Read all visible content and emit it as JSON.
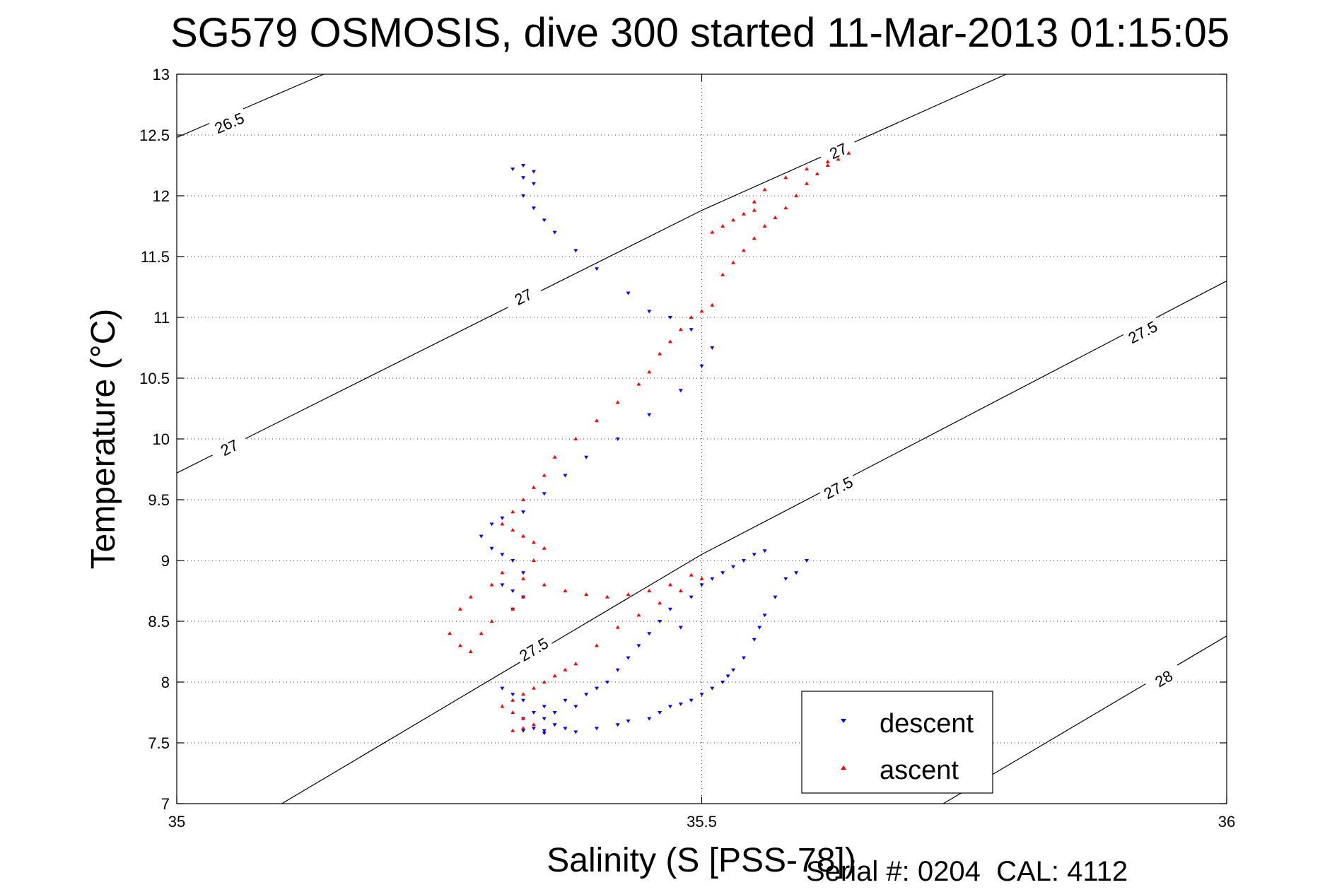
{
  "chart_data": {
    "type": "scatter",
    "title": "SG579 OSMOSIS, dive 300 started 11-Mar-2013 01:15:05",
    "xlabel": "Salinity (S [PSS-78])",
    "ylabel": "Temperature (°C)",
    "xlim": [
      35,
      36
    ],
    "ylim": [
      7,
      13
    ],
    "xticks": [
      35,
      35.5,
      36
    ],
    "xtick_labels": [
      "35",
      "35.5",
      "36"
    ],
    "yticks": [
      7,
      7.5,
      8,
      8.5,
      9,
      9.5,
      10,
      10.5,
      11,
      11.5,
      12,
      12.5,
      13
    ],
    "ytick_labels": [
      "7",
      "7.5",
      "8",
      "8.5",
      "9",
      "9.5",
      "10",
      "10.5",
      "11",
      "11.5",
      "12",
      "12.5",
      "13"
    ],
    "grid": true,
    "legend_position": "bottom-right",
    "footer": "Serial #: 0204  CAL: 4112",
    "contours": [
      {
        "label": "26.5",
        "points": [
          [
            35.0,
            12.48
          ],
          [
            35.14,
            13.0
          ]
        ],
        "label_positions": [
          [
            35.05,
            12.6
          ]
        ]
      },
      {
        "label": "27",
        "points": [
          [
            35.0,
            9.72
          ],
          [
            35.5,
            11.88
          ],
          [
            35.79,
            13.0
          ]
        ],
        "label_positions": [
          [
            35.05,
            9.93
          ],
          [
            35.33,
            11.17
          ],
          [
            35.63,
            12.37
          ]
        ]
      },
      {
        "label": "27.5",
        "points": [
          [
            35.1,
            7.0
          ],
          [
            35.5,
            9.05
          ],
          [
            36.0,
            11.3
          ]
        ],
        "label_positions": [
          [
            35.34,
            8.27
          ],
          [
            35.63,
            9.6
          ],
          [
            35.92,
            10.88
          ]
        ]
      },
      {
        "label": "28",
        "points": [
          [
            35.73,
            7.0
          ],
          [
            36.0,
            8.38
          ]
        ],
        "label_positions": [
          [
            35.94,
            8.03
          ]
        ]
      }
    ],
    "series": [
      {
        "name": "descent",
        "color": "#0000ff",
        "marker": "triangle-down",
        "x": [
          35.33,
          35.35,
          35.38,
          35.4,
          35.42,
          35.43,
          35.45,
          35.46,
          35.47,
          35.48,
          35.49,
          35.5,
          35.51,
          35.52,
          35.525,
          35.53,
          35.54,
          35.55,
          35.555,
          35.56,
          35.57,
          35.58,
          35.59,
          35.6,
          35.56,
          35.55,
          35.54,
          35.53,
          35.52,
          35.51,
          35.5,
          35.49,
          35.47,
          35.46,
          35.48,
          35.45,
          35.44,
          35.43,
          35.42,
          35.41,
          35.4,
          35.39,
          35.37,
          35.38,
          35.36,
          35.35,
          35.36,
          35.37,
          35.35,
          35.34,
          35.33,
          35.34,
          35.35,
          35.33,
          35.32,
          35.31,
          35.32,
          35.33,
          35.32,
          35.31,
          35.33,
          35.32,
          35.31,
          35.3,
          35.29,
          35.3,
          35.31,
          35.33,
          35.35,
          35.37,
          35.39,
          35.42,
          35.45,
          35.48,
          35.5,
          35.51,
          35.49,
          35.47,
          35.45,
          35.43,
          35.4,
          35.38,
          35.36,
          35.35,
          35.34,
          35.33,
          35.34,
          35.33,
          35.34,
          35.32,
          35.33
        ],
        "y": [
          7.6,
          7.58,
          7.59,
          7.62,
          7.65,
          7.68,
          7.7,
          7.75,
          7.8,
          7.82,
          7.85,
          7.9,
          7.95,
          8.0,
          8.05,
          8.1,
          8.2,
          8.35,
          8.45,
          8.55,
          8.7,
          8.85,
          8.9,
          9.0,
          9.08,
          9.05,
          9.0,
          8.95,
          8.9,
          8.85,
          8.8,
          8.7,
          8.6,
          8.5,
          8.45,
          8.4,
          8.3,
          8.2,
          8.1,
          8.0,
          7.95,
          7.9,
          7.85,
          7.8,
          7.75,
          7.7,
          7.65,
          7.62,
          7.6,
          7.62,
          7.7,
          7.75,
          7.8,
          7.85,
          7.9,
          7.95,
          8.6,
          8.7,
          8.75,
          8.8,
          8.9,
          9.0,
          9.05,
          9.1,
          9.2,
          9.3,
          9.35,
          9.4,
          9.55,
          9.7,
          9.85,
          10.0,
          10.2,
          10.4,
          10.6,
          10.75,
          10.9,
          11.0,
          11.05,
          11.2,
          11.4,
          11.55,
          11.7,
          11.8,
          11.9,
          12.0,
          12.1,
          12.15,
          12.2,
          12.22,
          12.25
        ]
      },
      {
        "name": "ascent",
        "color": "#ff0000",
        "marker": "triangle-up",
        "x": [
          35.32,
          35.33,
          35.34,
          35.33,
          35.32,
          35.31,
          35.32,
          35.33,
          35.34,
          35.35,
          35.36,
          35.37,
          35.38,
          35.4,
          35.42,
          35.44,
          35.46,
          35.48,
          35.5,
          35.49,
          35.47,
          35.45,
          35.43,
          35.41,
          35.39,
          35.37,
          35.35,
          35.33,
          35.31,
          35.3,
          35.28,
          35.27,
          35.26,
          35.27,
          35.28,
          35.29,
          35.3,
          35.32,
          35.33,
          35.34,
          35.35,
          35.34,
          35.33,
          35.32,
          35.31,
          35.32,
          35.33,
          35.34,
          35.35,
          35.36,
          35.38,
          35.4,
          35.42,
          35.44,
          35.45,
          35.46,
          35.47,
          35.48,
          35.49,
          35.5,
          35.51,
          35.52,
          35.53,
          35.54,
          35.55,
          35.56,
          35.57,
          35.58,
          35.59,
          35.6,
          35.61,
          35.62,
          35.63,
          35.64,
          35.62,
          35.6,
          35.58,
          35.56,
          35.55,
          35.54,
          35.53,
          35.52,
          35.51,
          35.55
        ],
        "y": [
          7.6,
          7.62,
          7.65,
          7.7,
          7.75,
          7.8,
          7.85,
          7.9,
          7.95,
          8.0,
          8.05,
          8.1,
          8.15,
          8.3,
          8.45,
          8.55,
          8.65,
          8.75,
          8.85,
          8.88,
          8.8,
          8.75,
          8.72,
          8.7,
          8.72,
          8.75,
          8.8,
          8.85,
          8.9,
          8.8,
          8.7,
          8.6,
          8.4,
          8.3,
          8.25,
          8.4,
          8.5,
          8.6,
          8.7,
          9.0,
          9.1,
          9.15,
          9.2,
          9.25,
          9.3,
          9.4,
          9.5,
          9.6,
          9.7,
          9.85,
          10.0,
          10.15,
          10.3,
          10.45,
          10.55,
          10.7,
          10.8,
          10.9,
          11.0,
          11.05,
          11.1,
          11.35,
          11.45,
          11.55,
          11.65,
          11.75,
          11.82,
          11.9,
          12.0,
          12.1,
          12.18,
          12.25,
          12.3,
          12.35,
          12.28,
          12.22,
          12.15,
          12.05,
          11.95,
          11.85,
          11.8,
          11.75,
          11.7,
          11.88
        ]
      }
    ]
  }
}
